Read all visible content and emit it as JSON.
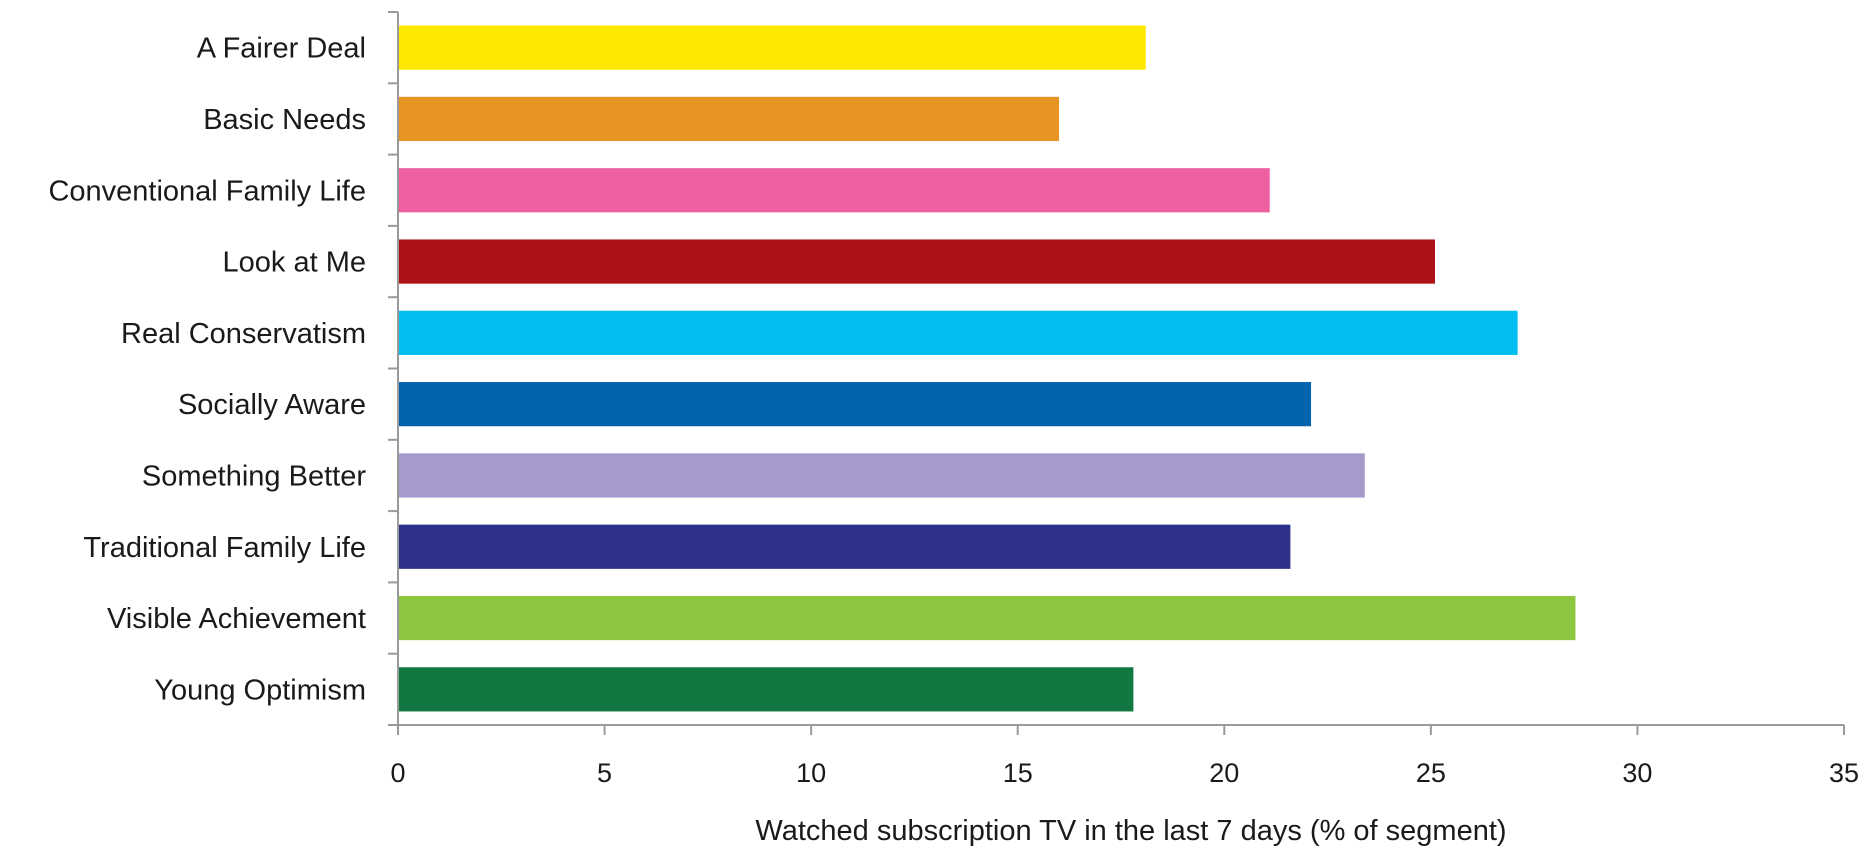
{
  "chart_data": {
    "type": "bar",
    "orientation": "horizontal",
    "categories": [
      "A Fairer Deal",
      "Basic Needs",
      "Conventional Family Life",
      "Look at Me",
      "Real Conservatism",
      "Socially Aware",
      "Something Better",
      "Traditional Family Life",
      "Visible Achievement",
      "Young Optimism"
    ],
    "values": [
      18.1,
      16.0,
      21.1,
      25.1,
      27.1,
      22.1,
      23.4,
      21.6,
      28.5,
      17.8
    ],
    "colors": [
      "#FFE800",
      "#E89423",
      "#EE5FA0",
      "#AC1118",
      "#02BEF0",
      "#0163AE",
      "#A699CB",
      "#2E318A",
      "#8CC63F",
      "#127740"
    ],
    "xlabel": "Watched subscription TV in the last 7 days (% of segment)",
    "ylabel": "",
    "title": "",
    "xlim": [
      0,
      35
    ],
    "xticks": [
      0,
      5,
      10,
      15,
      20,
      25,
      30,
      35
    ],
    "grid": false,
    "legend": "none"
  }
}
